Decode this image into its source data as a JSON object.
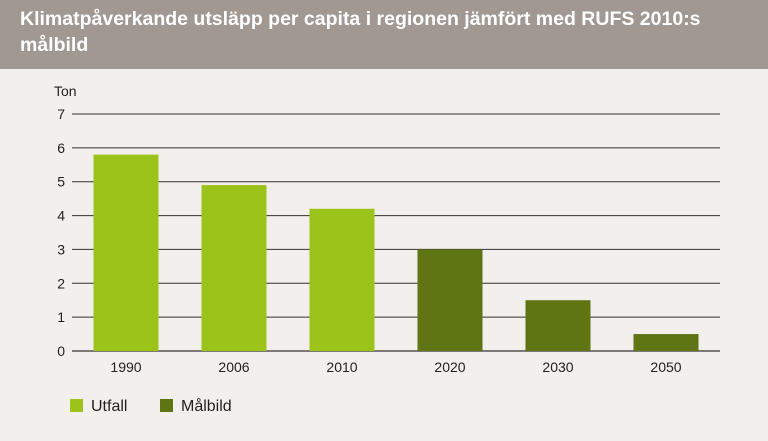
{
  "header": {
    "title": "Klimatpåverkande utsläpp per capita i regionen jämfört med RUFS 2010:s målbild"
  },
  "colors": {
    "header_bg": "#a09891",
    "background": "#f2efec",
    "utfall": "#9bc31a",
    "malbild": "#5f7413",
    "gridline": "#333333"
  },
  "chart_data": {
    "type": "bar",
    "title": "Klimatpåverkande utsläpp per capita i regionen jämfört med RUFS 2010:s målbild",
    "ylabel": "Ton",
    "xlabel": "",
    "categories": [
      "1990",
      "2006",
      "2010",
      "2020",
      "2030",
      "2050"
    ],
    "series": [
      {
        "name": "Utfall",
        "values": [
          5.8,
          4.9,
          4.2,
          null,
          null,
          null
        ]
      },
      {
        "name": "Målbild",
        "values": [
          null,
          null,
          null,
          3.0,
          1.5,
          0.5
        ]
      }
    ],
    "ylim": [
      0,
      7
    ],
    "yticks": [
      "0",
      "1",
      "2",
      "3",
      "4",
      "5",
      "6",
      "7"
    ],
    "grid": true,
    "legend_position": "bottom-left"
  }
}
